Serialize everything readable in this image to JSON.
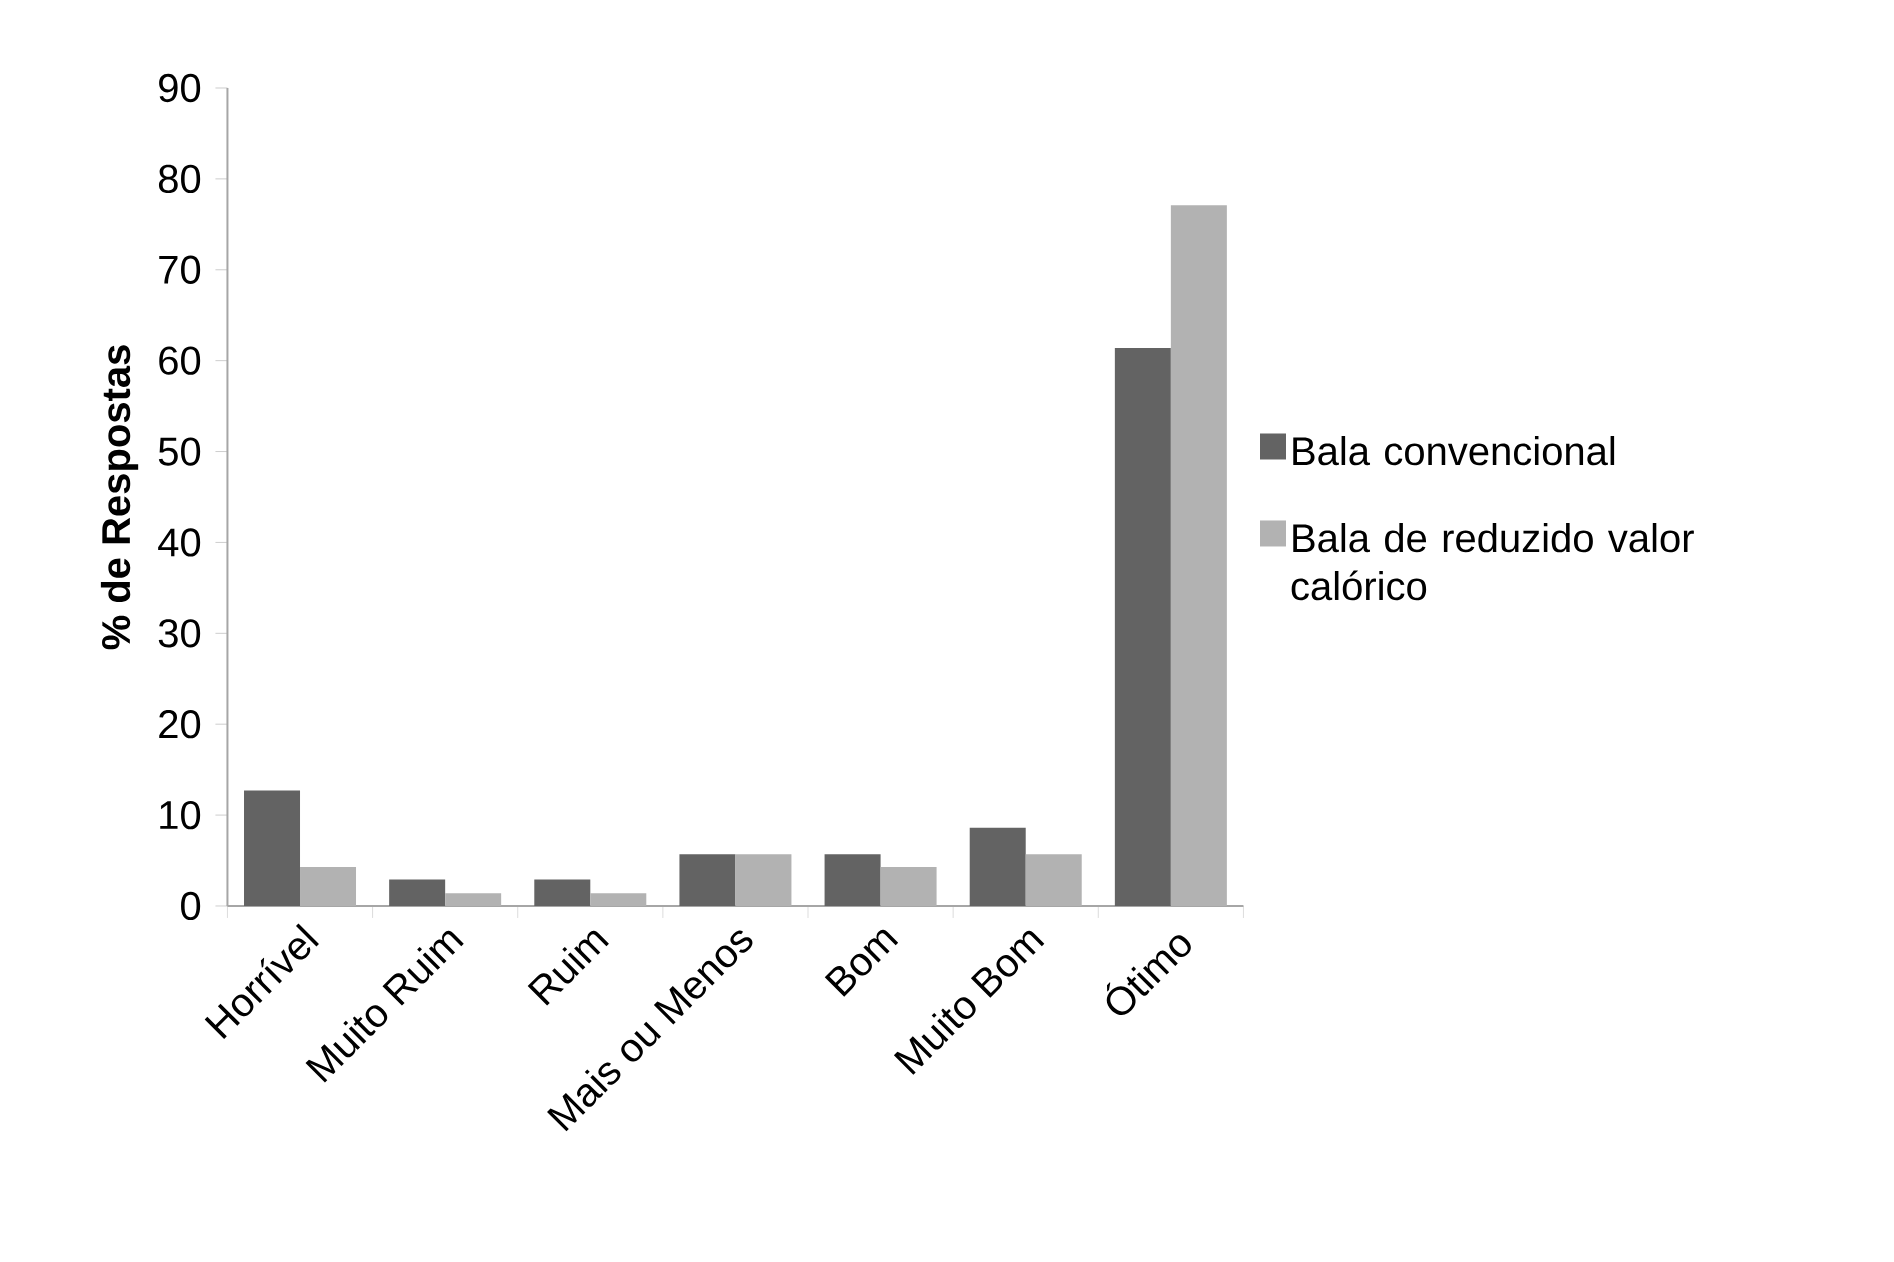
{
  "chart_data": {
    "type": "bar",
    "ylabel": "% de Respostas",
    "categories": [
      "Horrível",
      "Muito Ruim",
      "Ruim",
      "Mais ou Menos",
      "Bom",
      "Muito Bom",
      "Ótimo"
    ],
    "series": [
      {
        "name": "Bala convencional",
        "color": "#636363",
        "values": [
          12.7,
          2.9,
          2.9,
          5.7,
          5.7,
          8.6,
          61.4
        ]
      },
      {
        "name": "Bala de reduzido valor calórico",
        "color": "#b2b2b2",
        "values": [
          4.3,
          1.4,
          1.4,
          5.7,
          4.3,
          5.7,
          77.1
        ]
      }
    ],
    "ylim": [
      0,
      90
    ],
    "yticks": [
      0,
      10,
      20,
      30,
      40,
      50,
      60,
      70,
      80,
      90
    ],
    "grid": false,
    "legend": "right"
  }
}
